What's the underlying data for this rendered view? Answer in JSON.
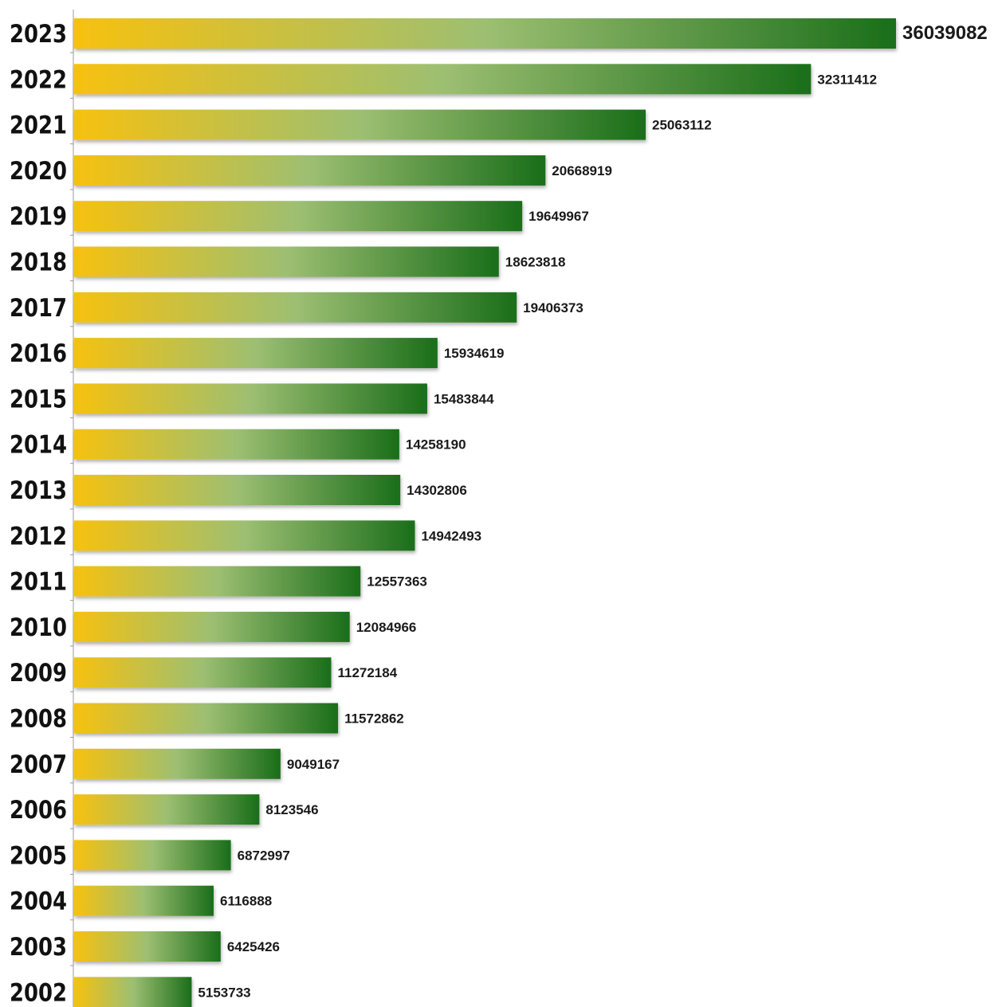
{
  "chart_data": {
    "type": "bar",
    "orientation": "horizontal",
    "title": "",
    "xlabel": "",
    "ylabel": "",
    "categories": [
      "2023",
      "2022",
      "2021",
      "2020",
      "2019",
      "2018",
      "2017",
      "2016",
      "2015",
      "2014",
      "2013",
      "2012",
      "2011",
      "2010",
      "2009",
      "2008",
      "2007",
      "2006",
      "2005",
      "2004",
      "2003",
      "2002"
    ],
    "values": [
      36039082,
      32311412,
      25063112,
      20668919,
      19649967,
      18623818,
      19406373,
      15934619,
      15483844,
      14258190,
      14302806,
      14942493,
      12557363,
      12084966,
      11272184,
      11572862,
      9049167,
      8123546,
      6872997,
      6116888,
      6425426,
      5153733
    ],
    "value_labels": [
      "36039082",
      "32311412",
      "25063112",
      "20668919",
      "19649967",
      "18623818",
      "19406373",
      "15934619",
      "15483844",
      "14258190",
      "14302806",
      "14942493",
      "12557363",
      "12084966",
      "11272184",
      "11572862",
      "9049167",
      "8123546",
      "6872997",
      "6116888",
      "6425426",
      "5153733"
    ],
    "xlim": [
      0,
      36039082
    ],
    "grid": false,
    "legend": "none",
    "colors": {
      "bar_start": "#f7c10f",
      "bar_mid": "#9dbf72",
      "bar_end": "#1a6e1a",
      "axis": "#999999"
    }
  }
}
